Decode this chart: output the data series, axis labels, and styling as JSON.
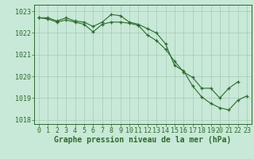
{
  "line1_x": [
    0,
    1,
    2,
    3,
    4,
    5,
    6,
    7,
    8,
    9,
    10,
    11,
    12,
    13,
    14,
    15,
    16,
    17,
    18,
    19,
    20,
    21,
    22,
    23
  ],
  "line1_y": [
    1022.7,
    1022.7,
    1022.55,
    1022.7,
    1022.55,
    1022.5,
    1022.3,
    1022.5,
    1022.85,
    1022.8,
    1022.5,
    1022.4,
    1022.2,
    1022.0,
    1021.5,
    1020.5,
    1020.25,
    1019.55,
    1019.05,
    1018.75,
    1018.55,
    1018.45,
    1018.9,
    1019.1
  ],
  "line2_x": [
    0,
    1,
    2,
    3,
    4,
    5,
    6,
    7,
    8,
    9,
    10,
    11,
    12,
    13,
    14,
    15,
    16,
    17,
    18,
    19,
    20,
    21,
    22
  ],
  "line2_y": [
    1022.7,
    1022.65,
    1022.5,
    1022.6,
    1022.5,
    1022.4,
    1022.05,
    1022.4,
    1022.5,
    1022.5,
    1022.45,
    1022.35,
    1021.9,
    1021.65,
    1021.25,
    1020.7,
    1020.2,
    1019.95,
    1019.45,
    1019.45,
    1019.0,
    1019.45,
    1019.75
  ],
  "line_color": "#2d6b2d",
  "bg_color": "#c8e8d8",
  "grid_color": "#a8c8b8",
  "xlabel": "Graphe pression niveau de la mer (hPa)",
  "ylim": [
    1017.8,
    1023.3
  ],
  "yticks": [
    1018,
    1019,
    1020,
    1021,
    1022,
    1023
  ],
  "xticks": [
    0,
    1,
    2,
    3,
    4,
    5,
    6,
    7,
    8,
    9,
    10,
    11,
    12,
    13,
    14,
    15,
    16,
    17,
    18,
    19,
    20,
    21,
    22,
    23
  ],
  "marker": "+",
  "markersize": 3.5,
  "linewidth": 0.8,
  "xlabel_fontsize": 7,
  "tick_fontsize": 6,
  "line_color_hex": "#2d6b2d",
  "xlabel_fontweight": "bold"
}
